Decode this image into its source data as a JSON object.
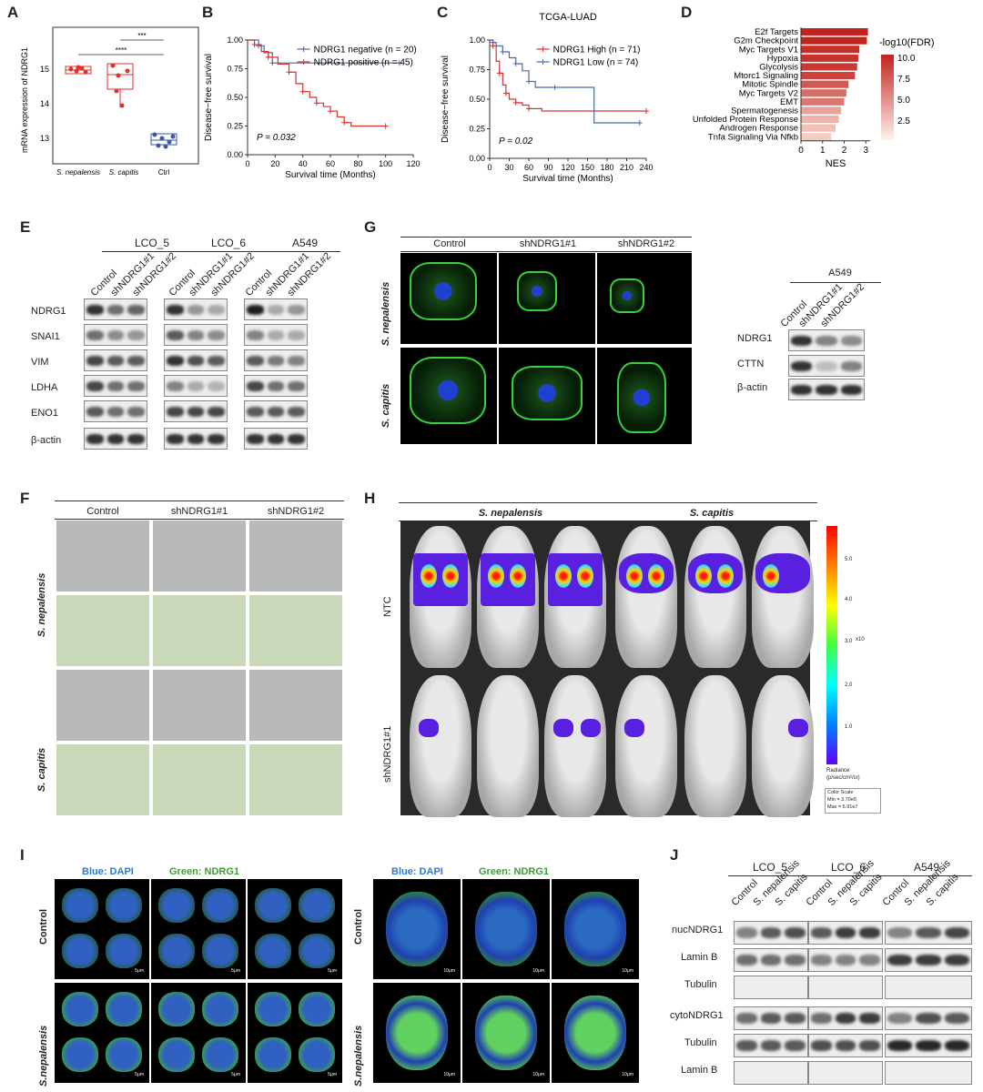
{
  "panels": {
    "A": "A",
    "B": "B",
    "C": "C",
    "D": "D",
    "E": "E",
    "F": "F",
    "G": "G",
    "H": "H",
    "I": "I",
    "J": "J"
  },
  "panelA": {
    "ylabel": "mRNA expression of NDRG1",
    "yticks": [
      "15",
      "14",
      "13"
    ],
    "groups": [
      "S. nepalensis",
      "S. capitis",
      "Ctrl"
    ],
    "sig_top": "***",
    "sig_bottom": "****",
    "colors": {
      "nep": "#e0302a",
      "cap": "#e0302a",
      "ctrl": "#3a5aa0"
    }
  },
  "chart_data": [
    {
      "type": "line",
      "title": "",
      "xlabel": "Survival time (Months)",
      "ylabel": "Disease−free survival",
      "xticks": [
        "0",
        "20",
        "40",
        "60",
        "80",
        "100",
        "120"
      ],
      "yticks": [
        "0.00",
        "0.25",
        "0.50",
        "0.75",
        "1.00"
      ],
      "xlim": [
        0,
        120
      ],
      "ylim": [
        0,
        1
      ],
      "pvalue": "P = 0.032",
      "series": [
        {
          "name": "NDRG1 negative (n = 20)",
          "color": "#4a6aa8",
          "x": [
            0,
            8,
            12,
            18,
            25,
            110
          ],
          "y": [
            1.0,
            0.95,
            0.89,
            0.8,
            0.8,
            0.8
          ]
        },
        {
          "name": "NDRG1 positive (n = 45)",
          "color": "#d83030",
          "x": [
            0,
            5,
            10,
            15,
            22,
            30,
            35,
            40,
            45,
            50,
            55,
            60,
            65,
            70,
            75,
            100
          ],
          "y": [
            1.0,
            0.96,
            0.9,
            0.85,
            0.79,
            0.72,
            0.62,
            0.55,
            0.5,
            0.45,
            0.42,
            0.38,
            0.33,
            0.28,
            0.25,
            0.25
          ]
        }
      ]
    },
    {
      "type": "line",
      "title": "TCGA-LUAD",
      "xlabel": "Survival time (Months)",
      "ylabel": "Disease−free survival",
      "xticks": [
        "0",
        "30",
        "60",
        "90",
        "120",
        "150",
        "180",
        "210",
        "240"
      ],
      "yticks": [
        "0.00",
        "0.25",
        "0.50",
        "0.75",
        "1.00"
      ],
      "xlim": [
        0,
        240
      ],
      "ylim": [
        0,
        1
      ],
      "pvalue": "P = 0.02",
      "series": [
        {
          "name": "NDRG1 High (n = 71)",
          "color": "#d83030",
          "x": [
            0,
            5,
            10,
            15,
            20,
            25,
            30,
            40,
            50,
            60,
            80,
            240
          ],
          "y": [
            1.0,
            0.95,
            0.82,
            0.72,
            0.62,
            0.55,
            0.5,
            0.47,
            0.45,
            0.42,
            0.4,
            0.4
          ]
        },
        {
          "name": "NDRG1 Low (n = 74)",
          "color": "#4a6aa8",
          "x": [
            0,
            5,
            10,
            20,
            30,
            40,
            50,
            60,
            70,
            100,
            160,
            230
          ],
          "y": [
            1.0,
            0.98,
            0.95,
            0.9,
            0.85,
            0.8,
            0.74,
            0.65,
            0.6,
            0.6,
            0.3,
            0.3
          ]
        }
      ]
    },
    {
      "type": "bar",
      "xlabel": "NES",
      "xticks": [
        "0",
        "1",
        "2",
        "3"
      ],
      "xlim": [
        0,
        3.2
      ],
      "legend_title": "-log10(FDR)",
      "legend_ticks": [
        "10.0",
        "7.5",
        "5.0",
        "2.5"
      ],
      "categories": [
        "E2f Targets",
        "G2m Checkpoint",
        "Myc Targets V1",
        "Hypoxia",
        "Glycolysis",
        "Mtorc1 Signaling",
        "Mitotic Spindle",
        "Myc Targets V2",
        "EMT",
        "Spermatogenesis",
        "Unfolded Protein Response",
        "Androgen Response",
        "Tnfa Signaling Via Nfkb"
      ],
      "values": [
        3.1,
        3.05,
        2.7,
        2.65,
        2.6,
        2.5,
        2.2,
        2.1,
        2.0,
        1.85,
        1.75,
        1.6,
        1.4
      ],
      "fdr": [
        10,
        10,
        9.5,
        9.3,
        9,
        8.5,
        7.5,
        6.5,
        6,
        4,
        3.2,
        2.6,
        2
      ]
    }
  ],
  "panelE": {
    "groups": [
      "LCO_5",
      "LCO_6",
      "A549"
    ],
    "lanes": [
      "Control",
      "shNDRG1#1",
      "shNDRG1#2"
    ],
    "rows": [
      "NDRG1",
      "SNAI1",
      "VIM",
      "LDHA",
      "ENO1",
      "β-actin"
    ]
  },
  "panelF": {
    "cols": [
      "Control",
      "shNDRG1#1",
      "shNDRG1#2"
    ],
    "rows": [
      "S. nepalensis",
      "S. capitis"
    ]
  },
  "panelG": {
    "cols": [
      "Control",
      "shNDRG1#1",
      "shNDRG1#2"
    ],
    "rows": [
      "S. nepalensis",
      "S. capitis"
    ],
    "blot_group": "A549",
    "lanes": [
      "Control",
      "shNDRG1#1",
      "shNDRG1#2"
    ],
    "blot_rows": [
      "NDRG1",
      "CTTN",
      "β-actin"
    ]
  },
  "panelH": {
    "cols": [
      "S. nepalensis",
      "S. capitis"
    ],
    "rows": [
      "NTC",
      "shNDRG1#1"
    ],
    "scale_ticks": [
      "5.0",
      "4.0",
      "3.0",
      "2.0",
      "1.0"
    ],
    "scale_exp": "x10",
    "radiance": "Radiance",
    "radiance_unit": "(p/sec/cm²/sr)",
    "color_scale_title": "Color Scale",
    "color_scale_min": "Min = 3.70e5",
    "color_scale_max": "Max = 5.91e7"
  },
  "panelI": {
    "stain_blue": "Blue: DAPI",
    "stain_green": "Green: NDRG1",
    "rows": [
      "Control",
      "S.nepalensis"
    ],
    "scale_left": "5μm",
    "scale_right": "10μm"
  },
  "panelJ": {
    "groups": [
      "LCO_5",
      "LCO_6",
      "A549"
    ],
    "lanes": [
      "Control",
      "S. nepalensis",
      "S. capitis"
    ],
    "rows": [
      "nucNDRG1",
      "Lamin B",
      "Tubulin",
      "cytoNDRG1",
      "Tubulin",
      "Lamin B"
    ]
  }
}
